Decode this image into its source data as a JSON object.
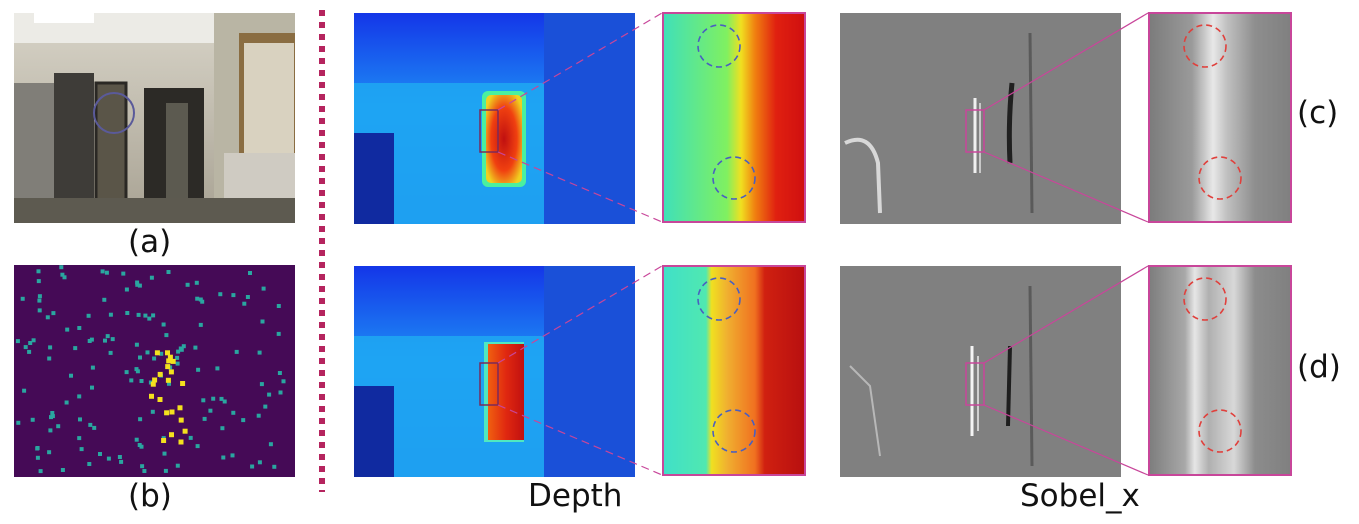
{
  "labels": {
    "a": "(a)",
    "b": "(b)",
    "c": "(c)",
    "d": "(d)",
    "depth": "Depth",
    "sobel": "Sobel_x"
  },
  "colors": {
    "divider": "#b5245e",
    "zoom_frame": "#c8469a",
    "blue_circle": "#4a5fc0",
    "red_circle": "#e0403c",
    "sparse_bg": "#450a56",
    "sparse_teal": "#2aa6a0",
    "sparse_yellow": "#f4e11e"
  }
}
